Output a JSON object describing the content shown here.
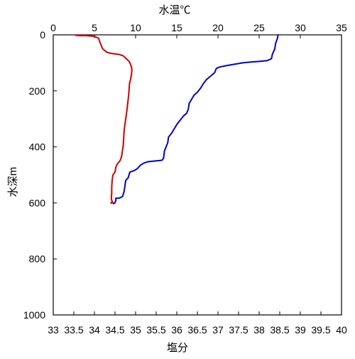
{
  "chart_data": {
    "type": "line",
    "x_top": {
      "label": "水温℃",
      "min": 0,
      "max": 35,
      "ticks": [
        0,
        5,
        10,
        15,
        20,
        25,
        30,
        35
      ],
      "color": "#0000aa"
    },
    "x_bottom": {
      "label": "塩分",
      "min": 33,
      "max": 40,
      "ticks": [
        33,
        33.5,
        34,
        34.5,
        35,
        35.5,
        36,
        36.5,
        37,
        37.5,
        38,
        38.5,
        39,
        39.5,
        40
      ],
      "color": "#cc0000"
    },
    "y": {
      "label": "水深m",
      "min": 0,
      "max": 1000,
      "reversed": true,
      "ticks": [
        0,
        200,
        400,
        600,
        800,
        1000
      ]
    },
    "grid": false,
    "series": [
      {
        "axis": "top",
        "color": "#0000cc",
        "points": [
          [
            27.3,
            0
          ],
          [
            27.2,
            15
          ],
          [
            27.0,
            30
          ],
          [
            26.9,
            50
          ],
          [
            26.6,
            70
          ],
          [
            26.5,
            85
          ],
          [
            26.0,
            92
          ],
          [
            25.0,
            95
          ],
          [
            24.0,
            97
          ],
          [
            23.0,
            100
          ],
          [
            22.0,
            105
          ],
          [
            21.0,
            110
          ],
          [
            20.2,
            115
          ],
          [
            19.8,
            120
          ],
          [
            19.6,
            135
          ],
          [
            19.2,
            145
          ],
          [
            18.6,
            160
          ],
          [
            18.2,
            175
          ],
          [
            17.9,
            190
          ],
          [
            17.5,
            205
          ],
          [
            17.1,
            215
          ],
          [
            16.8,
            230
          ],
          [
            16.5,
            245
          ],
          [
            16.4,
            265
          ],
          [
            16.2,
            280
          ],
          [
            15.8,
            290
          ],
          [
            15.4,
            305
          ],
          [
            15.0,
            320
          ],
          [
            14.7,
            335
          ],
          [
            14.4,
            350
          ],
          [
            14.0,
            365
          ],
          [
            13.9,
            385
          ],
          [
            13.7,
            400
          ],
          [
            13.5,
            415
          ],
          [
            13.4,
            440
          ],
          [
            13.2,
            448
          ],
          [
            12.5,
            450
          ],
          [
            11.5,
            453
          ],
          [
            11.0,
            458
          ],
          [
            10.6,
            465
          ],
          [
            10.2,
            478
          ],
          [
            9.8,
            485
          ],
          [
            9.3,
            490
          ],
          [
            9.1,
            510
          ],
          [
            8.8,
            520
          ],
          [
            8.7,
            540
          ],
          [
            8.6,
            560
          ],
          [
            8.4,
            578
          ],
          [
            8.0,
            583
          ],
          [
            7.6,
            583
          ],
          [
            7.6,
            590
          ],
          [
            7.5,
            600
          ],
          [
            7.3,
            603
          ]
        ]
      },
      {
        "axis": "bottom",
        "color": "#cc0000",
        "points": [
          [
            33.55,
            2
          ],
          [
            33.65,
            3
          ],
          [
            33.8,
            3
          ],
          [
            34.0,
            5
          ],
          [
            34.1,
            12
          ],
          [
            34.13,
            25
          ],
          [
            34.2,
            50
          ],
          [
            34.3,
            62
          ],
          [
            34.4,
            66
          ],
          [
            34.6,
            70
          ],
          [
            34.7,
            75
          ],
          [
            34.78,
            86
          ],
          [
            34.85,
            96
          ],
          [
            34.88,
            106
          ],
          [
            34.9,
            115
          ],
          [
            34.91,
            125
          ],
          [
            34.9,
            140
          ],
          [
            34.88,
            158
          ],
          [
            34.85,
            175
          ],
          [
            34.84,
            200
          ],
          [
            34.82,
            230
          ],
          [
            34.8,
            255
          ],
          [
            34.78,
            280
          ],
          [
            34.76,
            300
          ],
          [
            34.74,
            320
          ],
          [
            34.72,
            345
          ],
          [
            34.71,
            370
          ],
          [
            34.7,
            395
          ],
          [
            34.68,
            415
          ],
          [
            34.66,
            435
          ],
          [
            34.62,
            450
          ],
          [
            34.56,
            460
          ],
          [
            34.52,
            472
          ],
          [
            34.5,
            490
          ],
          [
            34.45,
            500
          ],
          [
            34.43,
            520
          ],
          [
            34.42,
            545
          ],
          [
            34.42,
            565
          ],
          [
            34.41,
            585
          ],
          [
            34.43,
            595
          ],
          [
            34.4,
            601
          ],
          [
            34.45,
            598
          ]
        ]
      }
    ]
  }
}
